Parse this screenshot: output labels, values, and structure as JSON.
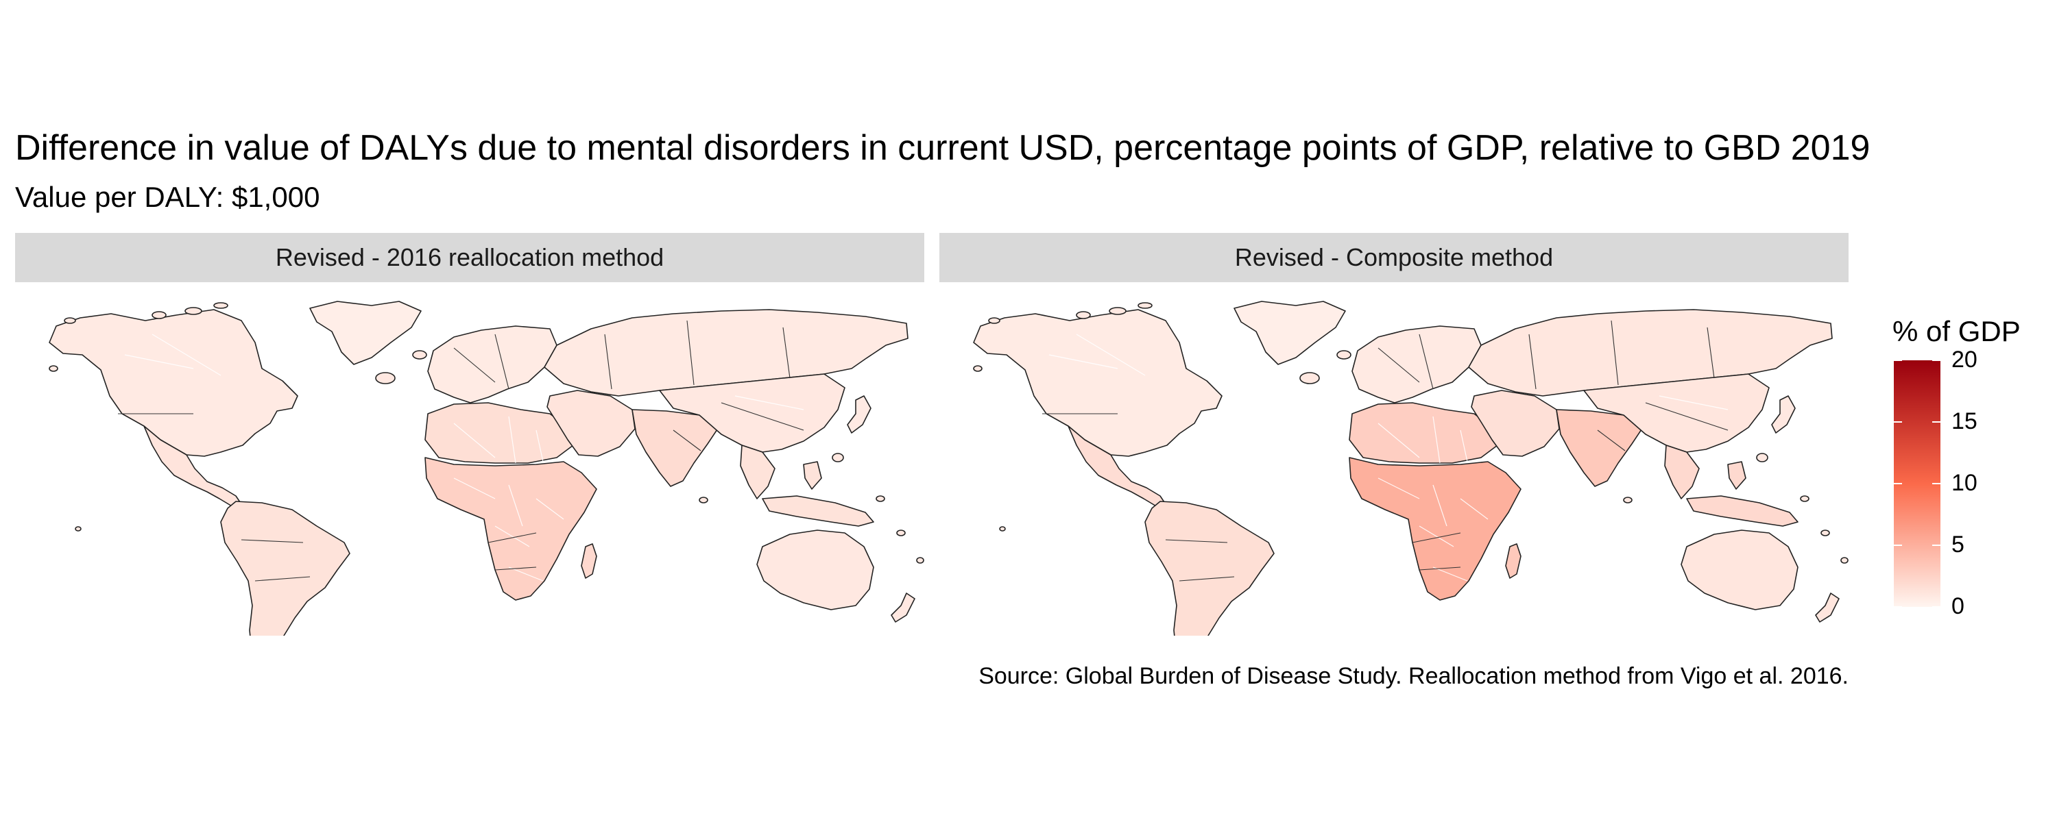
{
  "title": "Difference in value of DALYs due to mental disorders in current USD, percentage points of GDP, relative to GBD 2019",
  "subtitle": "Value per DALY: $1,000",
  "caption": "Source: Global Burden of Disease Study. Reallocation method from Vigo et al. 2016.",
  "panels": [
    {
      "label": "Revised - 2016 reallocation method",
      "regions": [
        {
          "name": "North America",
          "value": 0.8
        },
        {
          "name": "Greenland",
          "value": 0.5
        },
        {
          "name": "Mexico and Central America",
          "value": 1.2
        },
        {
          "name": "South America",
          "value": 1.3
        },
        {
          "name": "Europe",
          "value": 0.7
        },
        {
          "name": "North Africa",
          "value": 1.6
        },
        {
          "name": "Sub-Saharan Africa",
          "value": 2.6
        },
        {
          "name": "Madagascar",
          "value": 2.0
        },
        {
          "name": "Middle East",
          "value": 1.2
        },
        {
          "name": "Russia and Central Asia",
          "value": 0.8
        },
        {
          "name": "South Asia",
          "value": 1.8
        },
        {
          "name": "East Asia",
          "value": 0.9
        },
        {
          "name": "Southeast Asia",
          "value": 1.3
        },
        {
          "name": "Australia",
          "value": 0.9
        },
        {
          "name": "New Zealand",
          "value": 0.9
        },
        {
          "name": "Japan",
          "value": 0.8
        }
      ]
    },
    {
      "label": "Revised - Composite method",
      "regions": [
        {
          "name": "North America",
          "value": 0.7
        },
        {
          "name": "Greenland",
          "value": 0.5
        },
        {
          "name": "Mexico and Central America",
          "value": 1.7
        },
        {
          "name": "South America",
          "value": 1.6
        },
        {
          "name": "Europe",
          "value": 0.8
        },
        {
          "name": "North Africa",
          "value": 2.8
        },
        {
          "name": "Sub-Saharan Africa",
          "value": 5.0
        },
        {
          "name": "Madagascar",
          "value": 3.2
        },
        {
          "name": "Middle East",
          "value": 1.5
        },
        {
          "name": "Russia and Central Asia",
          "value": 1.0
        },
        {
          "name": "South Asia",
          "value": 3.2
        },
        {
          "name": "East Asia",
          "value": 1.1
        },
        {
          "name": "Southeast Asia",
          "value": 2.0
        },
        {
          "name": "Australia",
          "value": 1.1
        },
        {
          "name": "New Zealand",
          "value": 1.1
        },
        {
          "name": "Japan",
          "value": 0.9
        }
      ]
    }
  ],
  "legend": {
    "title": "% of GDP",
    "min": 0,
    "max": 20,
    "ticks": [
      "20",
      "15",
      "10",
      "5",
      "0"
    ],
    "color_low": "#fff5f0",
    "color_mid": "#fb6a4a",
    "color_high": "#99000d"
  }
}
